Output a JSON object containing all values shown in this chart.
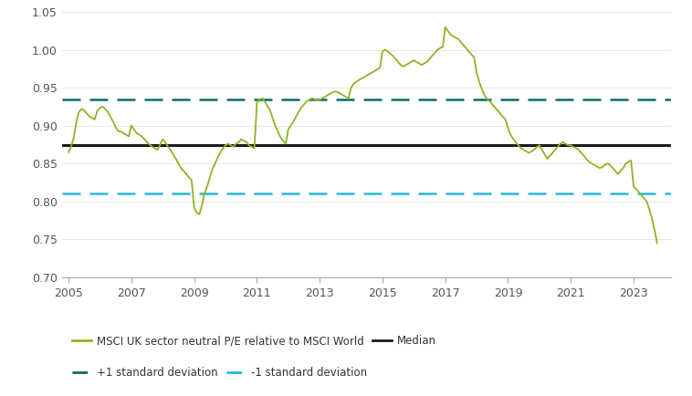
{
  "median": 0.874,
  "plus1sd": 0.934,
  "minus1sd": 0.81,
  "ylim": [
    0.7,
    1.05
  ],
  "yticks": [
    0.7,
    0.75,
    0.8,
    0.85,
    0.9,
    0.95,
    1.0,
    1.05
  ],
  "line_color": "#8db526",
  "median_color": "#1a1a1a",
  "plus1sd_color": "#0a6b6b",
  "minus1sd_color": "#29b8d8",
  "background_color": "#ffffff",
  "legend_label_main": "MSCI UK sector neutral P/E relative to MSCI World",
  "legend_label_median": "Median",
  "legend_label_plus1sd": "+1 standard deviation",
  "legend_label_minus1sd": "-1 standard deviation",
  "xticks": [
    2005,
    2007,
    2009,
    2011,
    2013,
    2015,
    2017,
    2019,
    2021,
    2023
  ],
  "xlim": [
    2004.8,
    2024.2
  ],
  "dates": [
    2005.0,
    2005.08,
    2005.17,
    2005.25,
    2005.33,
    2005.42,
    2005.5,
    2005.58,
    2005.67,
    2005.75,
    2005.83,
    2005.92,
    2006.0,
    2006.08,
    2006.17,
    2006.25,
    2006.33,
    2006.42,
    2006.5,
    2006.58,
    2006.67,
    2006.75,
    2006.83,
    2006.92,
    2007.0,
    2007.08,
    2007.17,
    2007.25,
    2007.33,
    2007.42,
    2007.5,
    2007.58,
    2007.67,
    2007.75,
    2007.83,
    2007.92,
    2008.0,
    2008.08,
    2008.17,
    2008.25,
    2008.33,
    2008.42,
    2008.5,
    2008.58,
    2008.67,
    2008.75,
    2008.83,
    2008.92,
    2009.0,
    2009.08,
    2009.17,
    2009.25,
    2009.33,
    2009.42,
    2009.5,
    2009.58,
    2009.67,
    2009.75,
    2009.83,
    2009.92,
    2010.0,
    2010.08,
    2010.17,
    2010.25,
    2010.33,
    2010.42,
    2010.5,
    2010.58,
    2010.67,
    2010.75,
    2010.83,
    2010.92,
    2011.0,
    2011.08,
    2011.17,
    2011.25,
    2011.33,
    2011.42,
    2011.5,
    2011.58,
    2011.67,
    2011.75,
    2011.83,
    2011.92,
    2012.0,
    2012.08,
    2012.17,
    2012.25,
    2012.33,
    2012.42,
    2012.5,
    2012.58,
    2012.67,
    2012.75,
    2012.83,
    2012.92,
    2013.0,
    2013.08,
    2013.17,
    2013.25,
    2013.33,
    2013.42,
    2013.5,
    2013.58,
    2013.67,
    2013.75,
    2013.83,
    2013.92,
    2014.0,
    2014.08,
    2014.17,
    2014.25,
    2014.33,
    2014.42,
    2014.5,
    2014.58,
    2014.67,
    2014.75,
    2014.83,
    2014.92,
    2015.0,
    2015.08,
    2015.17,
    2015.25,
    2015.33,
    2015.42,
    2015.5,
    2015.58,
    2015.67,
    2015.75,
    2015.83,
    2015.92,
    2016.0,
    2016.08,
    2016.17,
    2016.25,
    2016.33,
    2016.42,
    2016.5,
    2016.58,
    2016.67,
    2016.75,
    2016.83,
    2016.92,
    2017.0,
    2017.08,
    2017.17,
    2017.25,
    2017.33,
    2017.42,
    2017.5,
    2017.58,
    2017.67,
    2017.75,
    2017.83,
    2017.92,
    2018.0,
    2018.08,
    2018.17,
    2018.25,
    2018.33,
    2018.42,
    2018.5,
    2018.58,
    2018.67,
    2018.75,
    2018.83,
    2018.92,
    2019.0,
    2019.08,
    2019.17,
    2019.25,
    2019.33,
    2019.42,
    2019.5,
    2019.58,
    2019.67,
    2019.75,
    2019.83,
    2019.92,
    2020.0,
    2020.08,
    2020.17,
    2020.25,
    2020.33,
    2020.42,
    2020.5,
    2020.58,
    2020.67,
    2020.75,
    2020.83,
    2020.92,
    2021.0,
    2021.08,
    2021.17,
    2021.25,
    2021.33,
    2021.42,
    2021.5,
    2021.58,
    2021.67,
    2021.75,
    2021.83,
    2021.92,
    2022.0,
    2022.08,
    2022.17,
    2022.25,
    2022.33,
    2022.42,
    2022.5,
    2022.58,
    2022.67,
    2022.75,
    2022.83,
    2022.92,
    2023.0,
    2023.08,
    2023.17,
    2023.25,
    2023.33,
    2023.42,
    2023.5,
    2023.58,
    2023.67,
    2023.75
  ],
  "values": [
    0.865,
    0.872,
    0.885,
    0.905,
    0.918,
    0.922,
    0.92,
    0.916,
    0.912,
    0.91,
    0.908,
    0.92,
    0.923,
    0.925,
    0.922,
    0.918,
    0.912,
    0.905,
    0.898,
    0.893,
    0.892,
    0.89,
    0.888,
    0.886,
    0.9,
    0.895,
    0.89,
    0.888,
    0.886,
    0.882,
    0.878,
    0.875,
    0.872,
    0.87,
    0.868,
    0.875,
    0.882,
    0.878,
    0.872,
    0.868,
    0.862,
    0.856,
    0.85,
    0.844,
    0.84,
    0.836,
    0.832,
    0.828,
    0.792,
    0.785,
    0.783,
    0.795,
    0.81,
    0.82,
    0.832,
    0.842,
    0.85,
    0.858,
    0.864,
    0.87,
    0.874,
    0.876,
    0.874,
    0.872,
    0.876,
    0.878,
    0.882,
    0.88,
    0.878,
    0.874,
    0.872,
    0.87,
    0.93,
    0.934,
    0.936,
    0.932,
    0.926,
    0.92,
    0.91,
    0.9,
    0.892,
    0.885,
    0.88,
    0.876,
    0.895,
    0.9,
    0.906,
    0.912,
    0.918,
    0.924,
    0.928,
    0.932,
    0.934,
    0.936,
    0.935,
    0.933,
    0.934,
    0.936,
    0.938,
    0.94,
    0.942,
    0.944,
    0.945,
    0.944,
    0.942,
    0.94,
    0.938,
    0.936,
    0.95,
    0.955,
    0.958,
    0.96,
    0.962,
    0.964,
    0.966,
    0.968,
    0.97,
    0.972,
    0.974,
    0.976,
    0.998,
    1.0,
    0.998,
    0.995,
    0.992,
    0.988,
    0.984,
    0.98,
    0.978,
    0.98,
    0.982,
    0.984,
    0.986,
    0.984,
    0.982,
    0.98,
    0.982,
    0.984,
    0.988,
    0.992,
    0.996,
    1.0,
    1.002,
    1.004,
    1.03,
    1.025,
    1.02,
    1.018,
    1.016,
    1.014,
    1.01,
    1.006,
    1.002,
    0.998,
    0.994,
    0.99,
    0.97,
    0.958,
    0.948,
    0.94,
    0.935,
    0.932,
    0.928,
    0.924,
    0.92,
    0.916,
    0.912,
    0.908,
    0.896,
    0.888,
    0.882,
    0.878,
    0.874,
    0.87,
    0.868,
    0.866,
    0.864,
    0.866,
    0.868,
    0.872,
    0.874,
    0.868,
    0.862,
    0.856,
    0.86,
    0.864,
    0.868,
    0.872,
    0.876,
    0.878,
    0.876,
    0.874,
    0.874,
    0.872,
    0.87,
    0.868,
    0.864,
    0.86,
    0.856,
    0.852,
    0.85,
    0.848,
    0.846,
    0.844,
    0.845,
    0.848,
    0.85,
    0.848,
    0.844,
    0.84,
    0.836,
    0.84,
    0.844,
    0.85,
    0.852,
    0.854,
    0.82,
    0.816,
    0.812,
    0.808,
    0.804,
    0.8,
    0.79,
    0.778,
    0.762,
    0.745
  ]
}
